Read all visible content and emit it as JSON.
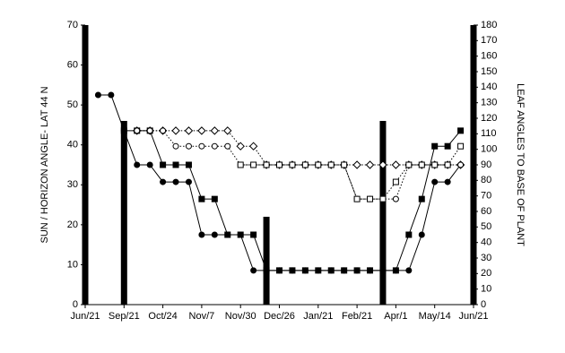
{
  "chart_data": {
    "type": "line",
    "y_label": "SUN / HORIZON ANGLE- LAT 44 N",
    "y2_label": "LEAF ANGLES TO BASE OF PLANT",
    "xlim": [
      0,
      30
    ],
    "xticks": [
      {
        "value": 0,
        "label": "Jun/21"
      },
      {
        "value": 3,
        "label": "Sep/21"
      },
      {
        "value": 6,
        "label": "Oct/24"
      },
      {
        "value": 9,
        "label": "Nov/7"
      },
      {
        "value": 12,
        "label": "Nov/30"
      },
      {
        "value": 15,
        "label": "Dec/26"
      },
      {
        "value": 18,
        "label": "Jan/21"
      },
      {
        "value": 21,
        "label": "Feb/21"
      },
      {
        "value": 24,
        "label": "Apr/1"
      },
      {
        "value": 27,
        "label": "May/14"
      },
      {
        "value": 30,
        "label": "Jun/21"
      }
    ],
    "ylim": [
      0,
      70
    ],
    "yticks": [
      0,
      10,
      20,
      30,
      40,
      50,
      60,
      70
    ],
    "y2lim": [
      0,
      180
    ],
    "y2ticks": [
      0,
      10,
      20,
      30,
      40,
      50,
      60,
      70,
      80,
      90,
      100,
      110,
      120,
      130,
      140,
      150,
      160,
      170,
      180
    ],
    "bars": {
      "color": "#000000",
      "x": [
        0,
        3,
        14,
        23,
        30
      ],
      "values": [
        70,
        46,
        22,
        46,
        70
      ]
    },
    "series": [
      {
        "color": "#000000",
        "marker": "square",
        "filled": true,
        "style": "solid",
        "axis": "y2",
        "x": [
          3,
          4,
          5,
          6,
          7,
          8,
          9,
          10,
          11,
          12,
          13,
          14,
          15,
          16,
          17,
          18,
          19,
          20,
          21,
          22,
          23,
          24,
          25,
          26,
          27,
          28,
          29
        ],
        "values": [
          112,
          112,
          112,
          90,
          90,
          90,
          68,
          68,
          45,
          45,
          45,
          22,
          22,
          22,
          22,
          22,
          22,
          22,
          22,
          22,
          22,
          22,
          45,
          68,
          102,
          102,
          112
        ]
      },
      {
        "color": "#000000",
        "marker": "circle",
        "filled": true,
        "style": "solid",
        "axis": "y2",
        "x": [
          1,
          2,
          3,
          4,
          5,
          6,
          7,
          8,
          9,
          10,
          11,
          12,
          13,
          14,
          15,
          16,
          17,
          18,
          19,
          20,
          21,
          22,
          23,
          24,
          25,
          26,
          27,
          28,
          29
        ],
        "values": [
          135,
          135,
          112,
          90,
          90,
          79,
          79,
          79,
          45,
          45,
          45,
          45,
          22,
          22,
          22,
          22,
          22,
          22,
          22,
          22,
          22,
          22,
          22,
          22,
          22,
          45,
          79,
          79,
          90
        ]
      },
      {
        "color": "#000000",
        "marker": "diamond",
        "filled": false,
        "style": "dotted",
        "axis": "y2",
        "x": [
          4,
          5,
          6,
          7,
          8,
          9,
          10,
          11,
          12,
          13,
          14,
          15,
          16,
          17,
          18,
          19,
          20,
          21,
          22,
          23,
          24,
          25,
          26,
          27,
          28,
          29
        ],
        "values": [
          112,
          112,
          112,
          112,
          112,
          112,
          112,
          112,
          102,
          102,
          90,
          90,
          90,
          90,
          90,
          90,
          90,
          90,
          90,
          90,
          90,
          90,
          90,
          90,
          90,
          90
        ]
      },
      {
        "color": "#000000",
        "marker": "circle",
        "filled": false,
        "style": "dotted",
        "axis": "y2",
        "x": [
          4,
          5,
          6,
          7,
          8,
          9,
          10,
          11,
          12,
          13,
          14,
          15,
          16,
          17,
          18,
          19,
          20,
          21,
          22,
          23,
          24,
          25,
          26,
          27,
          28,
          29
        ],
        "values": [
          112,
          112,
          112,
          102,
          102,
          102,
          102,
          102,
          90,
          90,
          90,
          90,
          90,
          90,
          90,
          90,
          90,
          68,
          68,
          68,
          68,
          90,
          90,
          90,
          90,
          90
        ]
      },
      {
        "color": "#000000",
        "marker": "square",
        "filled": false,
        "style": "dotted",
        "axis": "y2",
        "x": [
          12,
          13,
          14,
          15,
          16,
          17,
          18,
          19,
          20,
          21,
          22,
          23,
          24,
          25,
          26,
          27,
          28,
          29
        ],
        "values": [
          90,
          90,
          90,
          90,
          90,
          90,
          90,
          90,
          90,
          68,
          68,
          68,
          79,
          90,
          90,
          90,
          90,
          102
        ]
      }
    ]
  }
}
